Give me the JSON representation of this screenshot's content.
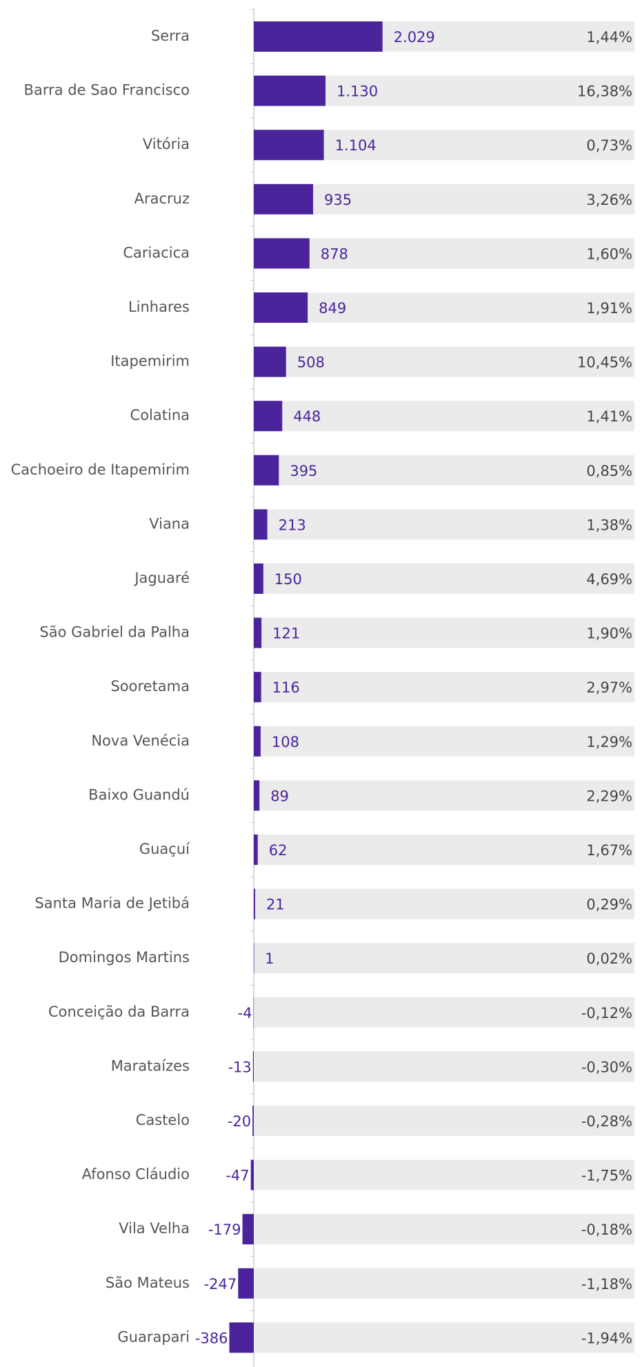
{
  "chart_data": {
    "type": "bar",
    "orientation": "horizontal",
    "categories": [
      "Serra",
      "Barra de Sao Francisco",
      "Vitória",
      "Aracruz",
      "Cariacica",
      "Linhares",
      "Itapemirim",
      "Colatina",
      "Cachoeiro de Itapemirim",
      "Viana",
      "Jaguaré",
      "São Gabriel da Palha",
      "Sooretama",
      "Nova Venécia",
      "Baixo Guandú",
      "Guaçuí",
      "Santa Maria de Jetibá",
      "Domingos Martins",
      "Conceição da Barra",
      "Marataízes",
      "Castelo",
      "Afonso Cláudio",
      "Vila Velha",
      "São Mateus",
      "Guarapari"
    ],
    "series": [
      {
        "color": "#4b249c",
        "values": [
          2029,
          1130,
          1104,
          935,
          878,
          849,
          508,
          448,
          395,
          213,
          150,
          121,
          116,
          108,
          89,
          62,
          21,
          1,
          -4,
          -13,
          -20,
          -47,
          -179,
          -247,
          -386
        ],
        "value_labels": [
          "2.029",
          "1.130",
          "1.104",
          "935",
          "878",
          "849",
          "508",
          "448",
          "395",
          "213",
          "150",
          "121",
          "116",
          "108",
          "89",
          "62",
          "21",
          "1",
          "-4",
          "-13",
          "-20",
          "-47",
          "-179",
          "-247",
          "-386"
        ]
      },
      {
        "color": "#444444",
        "values": [
          1.44,
          16.38,
          0.73,
          3.26,
          1.6,
          1.91,
          10.45,
          1.41,
          0.85,
          1.38,
          4.69,
          1.9,
          2.97,
          1.29,
          2.29,
          1.67,
          0.29,
          0.02,
          -0.12,
          -0.3,
          -0.28,
          -1.75,
          -0.18,
          -1.18,
          -1.94
        ],
        "value_labels": [
          "1,44%",
          "16,38%",
          "0,73%",
          "3,26%",
          "1,60%",
          "1,91%",
          "10,45%",
          "1,41%",
          "0,85%",
          "1,38%",
          "4,69%",
          "1,90%",
          "2,97%",
          "1,29%",
          "2,29%",
          "1,67%",
          "0,29%",
          "0,02%",
          "-0,12%",
          "-0,30%",
          "-0,28%",
          "-1,75%",
          "-0,18%",
          "-1,18%",
          "-1,94%"
        ]
      }
    ],
    "xlim": [
      -4000,
      6000
    ]
  }
}
